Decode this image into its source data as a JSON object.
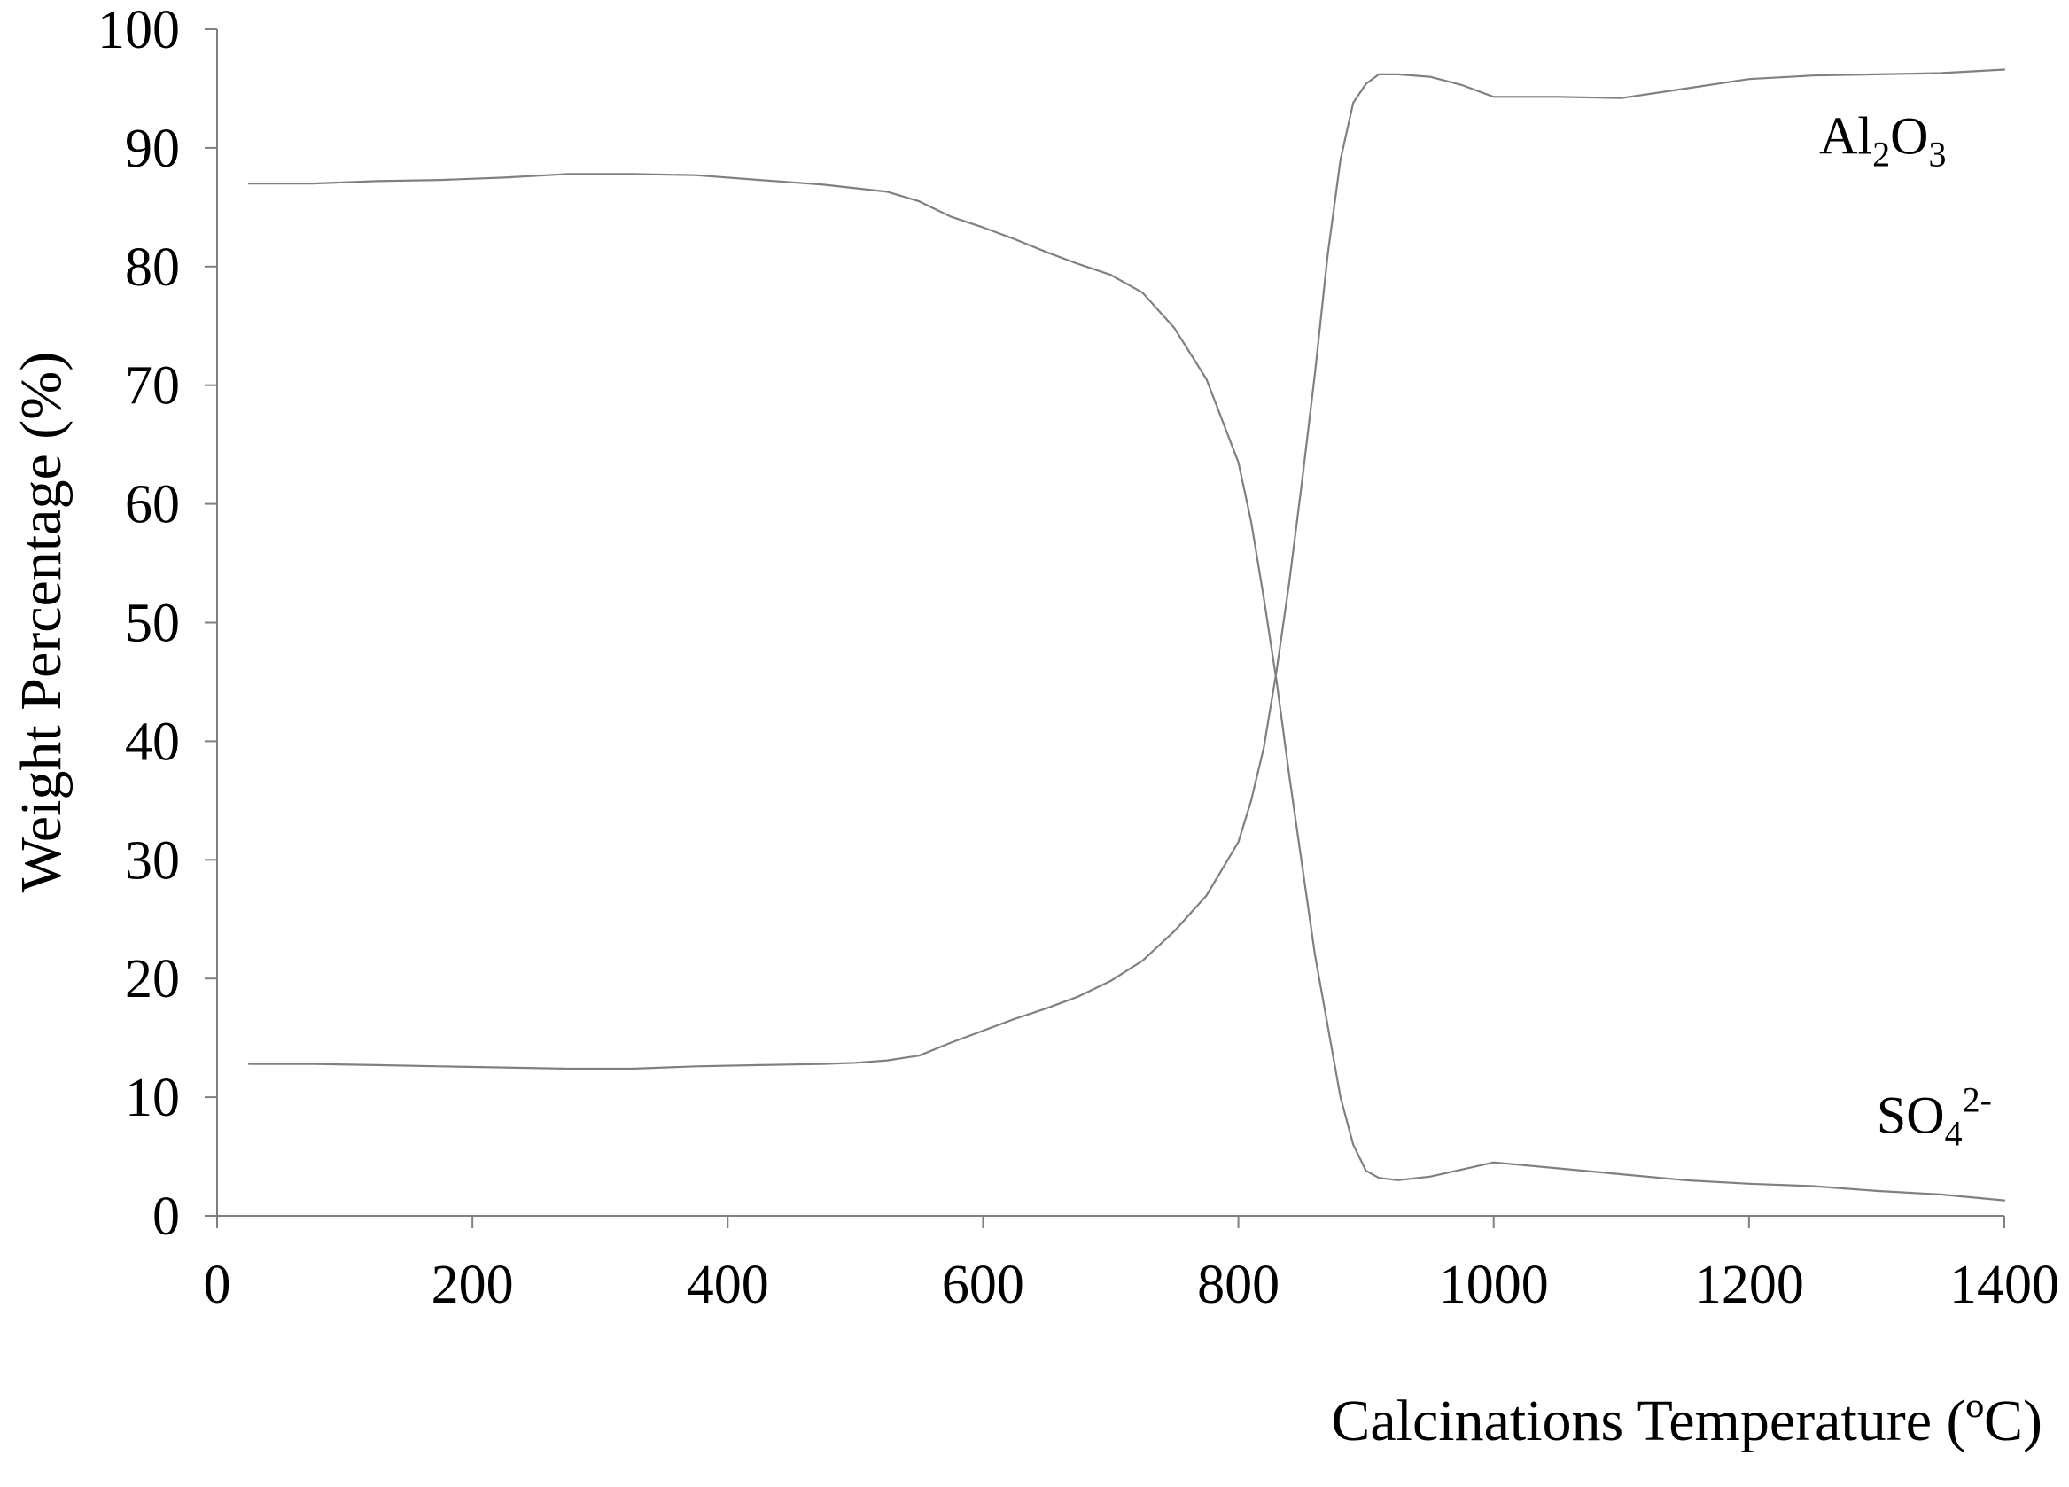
{
  "chart_data": {
    "type": "line",
    "xlabel": "Calcinations Temperature (ºC)",
    "ylabel": "Weight Percentage (%)",
    "xlim": [
      0,
      1400
    ],
    "ylim": [
      0,
      100
    ],
    "xticks": [
      "0",
      "200",
      "400",
      "600",
      "800",
      "1000",
      "1200",
      "1400"
    ],
    "yticks": [
      "0",
      "10",
      "20",
      "30",
      "40",
      "50",
      "60",
      "70",
      "80",
      "90",
      "100"
    ],
    "grid": false,
    "legend": "none",
    "line_color": "#808080",
    "series": [
      {
        "name": "SO42-",
        "label_main": "SO",
        "label_sub": "4",
        "label_sup": "2-",
        "label_at": {
          "x": 1300,
          "y": 7
        },
        "x": [
          25,
          75,
          125,
          175,
          225,
          275,
          325,
          375,
          425,
          475,
          500,
          525,
          550,
          575,
          600,
          625,
          650,
          675,
          700,
          725,
          750,
          775,
          800,
          810,
          820,
          830,
          840,
          850,
          860,
          870,
          880,
          890,
          900,
          910,
          925,
          950,
          975,
          1000,
          1050,
          1100,
          1150,
          1200,
          1250,
          1300,
          1350,
          1400
        ],
        "values": [
          87,
          87,
          87.2,
          87.3,
          87.5,
          87.8,
          87.8,
          87.7,
          87.3,
          86.9,
          86.6,
          86.3,
          85.5,
          84.2,
          83.3,
          82.3,
          81.2,
          80.2,
          79.3,
          77.8,
          74.8,
          70.5,
          63.5,
          58.5,
          52,
          45,
          37,
          29.5,
          22,
          16,
          10,
          6,
          3.8,
          3.2,
          3,
          3.3,
          3.9,
          4.5,
          4,
          3.5,
          3,
          2.7,
          2.5,
          2.1,
          1.8,
          1.3
        ]
      },
      {
        "name": "Al2O3",
        "label_main1": "Al",
        "label_sub": "2",
        "label_main2": "O",
        "label_sub2": "3",
        "label_at": {
          "x": 1255,
          "y": 89.5
        },
        "x": [
          25,
          75,
          125,
          175,
          225,
          275,
          325,
          375,
          425,
          475,
          500,
          525,
          550,
          575,
          600,
          625,
          650,
          675,
          700,
          725,
          750,
          775,
          800,
          810,
          820,
          830,
          840,
          850,
          860,
          870,
          880,
          890,
          900,
          910,
          925,
          950,
          975,
          1000,
          1050,
          1100,
          1150,
          1200,
          1250,
          1300,
          1350,
          1400
        ],
        "values": [
          12.8,
          12.8,
          12.7,
          12.6,
          12.5,
          12.4,
          12.4,
          12.6,
          12.7,
          12.8,
          12.9,
          13.1,
          13.5,
          14.6,
          15.6,
          16.6,
          17.5,
          18.5,
          19.8,
          21.5,
          24,
          27,
          31.5,
          35,
          39.5,
          46,
          53.5,
          62,
          71,
          81,
          89,
          93.8,
          95.4,
          96.2,
          96.2,
          96,
          95.3,
          94.3,
          94.3,
          94.2,
          95,
          95.8,
          96.1,
          96.2,
          96.3,
          96.6
        ]
      }
    ]
  }
}
